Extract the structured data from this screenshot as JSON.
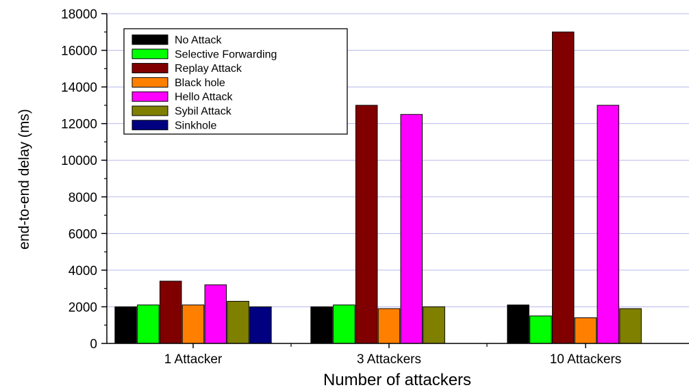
{
  "chart_data": {
    "type": "bar",
    "title": "",
    "xlabel": "Number of attackers",
    "ylabel": "end-to-end delay (ms)",
    "ylim": [
      0,
      18000
    ],
    "yticks": [
      0,
      2000,
      4000,
      6000,
      8000,
      10000,
      12000,
      14000,
      16000,
      18000
    ],
    "grid": true,
    "legend_position": "top-left",
    "categories": [
      "1 Attacker",
      "3 Attackers",
      "10 Attackers"
    ],
    "series": [
      {
        "name": "No Attack",
        "color": "#000000",
        "values": [
          2000,
          2000,
          2100
        ]
      },
      {
        "name": "Selective Forwarding",
        "color": "#00ff00",
        "values": [
          2100,
          2100,
          1500
        ]
      },
      {
        "name": "Replay Attack",
        "color": "#800000",
        "values": [
          3400,
          13000,
          17000
        ]
      },
      {
        "name": "Black hole",
        "color": "#ff8000",
        "values": [
          2100,
          1900,
          1400
        ]
      },
      {
        "name": "Hello Attack",
        "color": "#ff00ff",
        "values": [
          3200,
          12500,
          13000
        ]
      },
      {
        "name": "Sybil Attack",
        "color": "#808000",
        "values": [
          2300,
          2000,
          1900
        ]
      },
      {
        "name": "Sinkhole",
        "color": "#000080",
        "values": [
          2000,
          null,
          null
        ]
      }
    ]
  }
}
